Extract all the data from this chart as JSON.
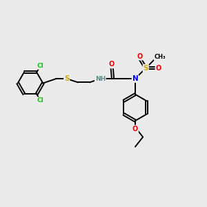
{
  "bg_color": "#ebebeb",
  "atom_colors": {
    "C": "#000000",
    "H": "#5a8a8a",
    "N": "#0000ee",
    "O": "#ee0000",
    "S": "#ccaa00",
    "Cl": "#00cc00"
  },
  "bond_color": "#000000",
  "bond_width": 1.4,
  "figsize": [
    3.0,
    3.0
  ],
  "dpi": 100
}
